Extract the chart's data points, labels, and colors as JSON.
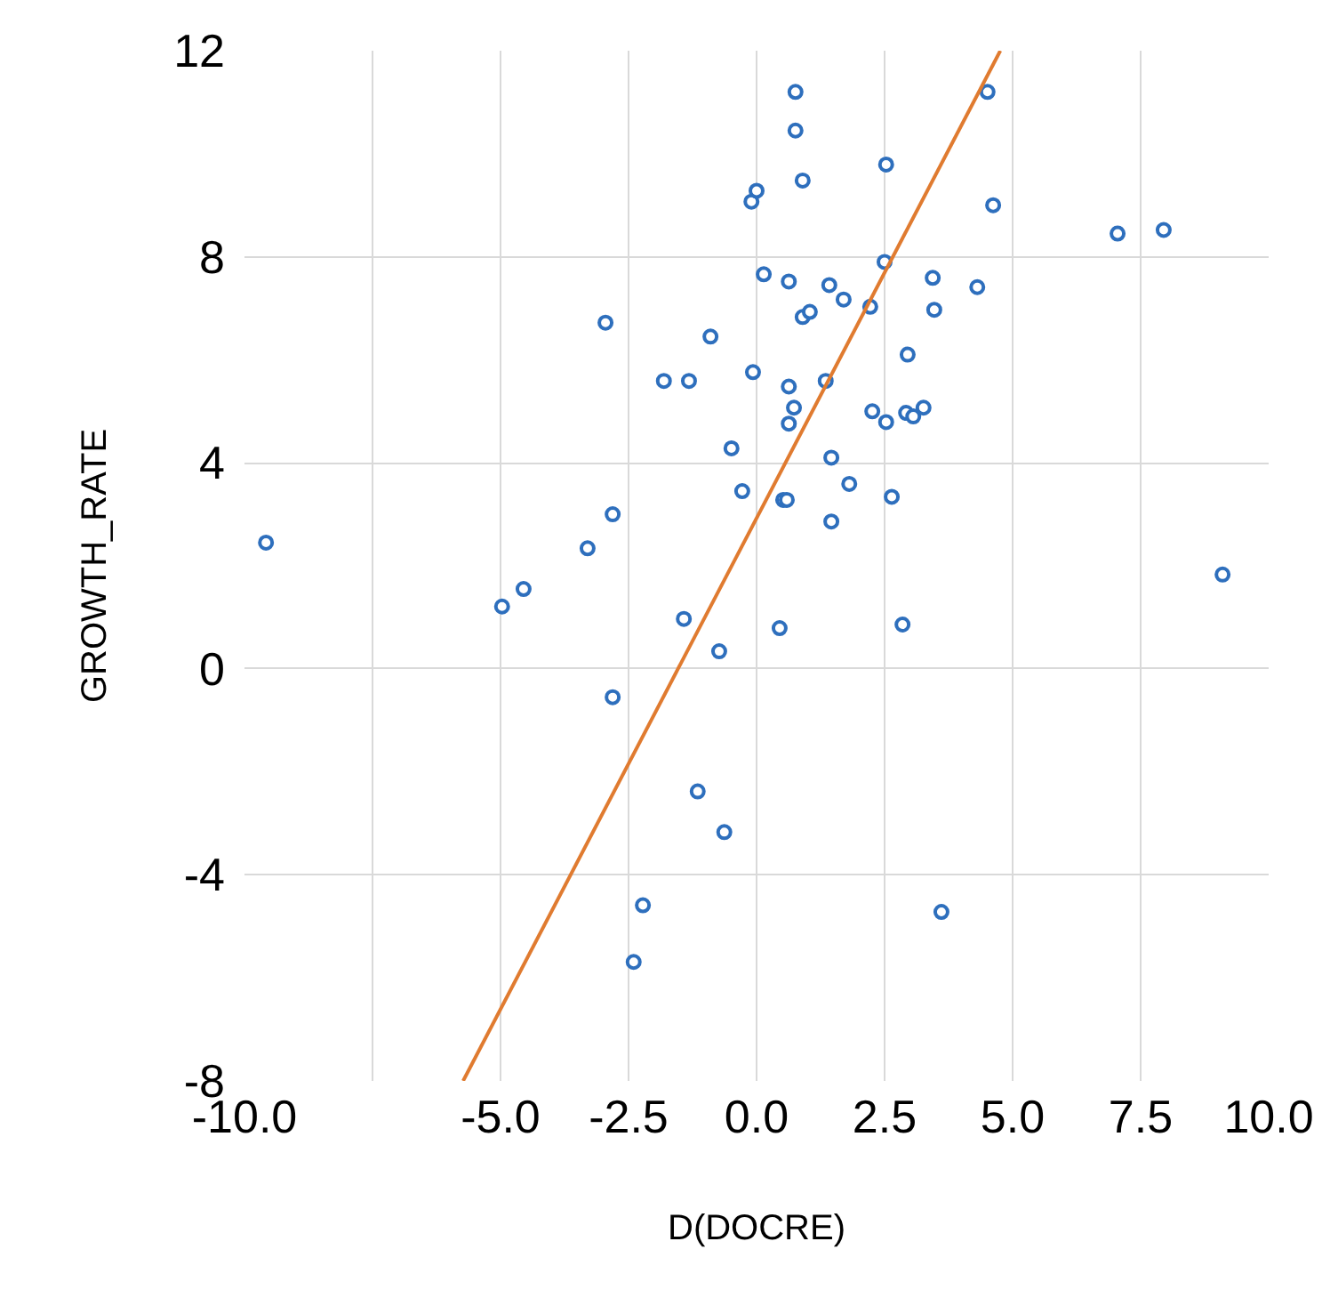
{
  "chart_data": {
    "type": "scatter",
    "xlabel": "D(DOCRE)",
    "ylabel": "GROWTH_RATE",
    "xlim": [
      -10,
      10
    ],
    "ylim": [
      -8,
      12
    ],
    "xticks": [
      {
        "value": -10,
        "label": "-10.0"
      },
      {
        "value": -7.5,
        "label": null
      },
      {
        "value": -5,
        "label": "-5.0"
      },
      {
        "value": -2.5,
        "label": "-2.5"
      },
      {
        "value": 0,
        "label": "0.0"
      },
      {
        "value": 2.5,
        "label": "2.5"
      },
      {
        "value": 5,
        "label": "5.0"
      },
      {
        "value": 7.5,
        "label": "7.5"
      },
      {
        "value": 10,
        "label": "10.0"
      }
    ],
    "yticks": [
      -8,
      -4,
      0,
      4,
      8,
      12
    ],
    "grid": true,
    "series": [
      {
        "marker": "circle",
        "color": "#2e6fbd",
        "x": [
          -9.58,
          -4.97,
          -4.55,
          -3.3,
          -2.81,
          -2.95,
          -1.81,
          -1.32,
          -0.9,
          -1.42,
          -0.73,
          -0.49,
          -0.28,
          -0.1,
          0.0,
          -0.07,
          0.14,
          0.63,
          0.76,
          0.76,
          0.9,
          0.63,
          0.73,
          0.63,
          0.9,
          1.04,
          1.42,
          1.7,
          1.35,
          1.46,
          0.52,
          0.59,
          1.46,
          1.81,
          0.45,
          2.22,
          2.5,
          2.53,
          2.26,
          2.53,
          2.92,
          3.06,
          3.26,
          2.95,
          3.44,
          3.47,
          2.64,
          2.85,
          4.31,
          4.51,
          4.62,
          7.05,
          7.95,
          9.1,
          -2.81,
          -1.15,
          -0.63,
          -2.22,
          -2.4,
          3.61
        ],
        "values": [
          2.45,
          1.21,
          1.55,
          2.34,
          3.0,
          6.72,
          5.59,
          5.59,
          6.45,
          0.97,
          0.34,
          4.28,
          3.45,
          9.07,
          9.28,
          5.76,
          7.66,
          7.52,
          11.2,
          10.45,
          9.48,
          5.48,
          5.07,
          4.76,
          6.83,
          6.93,
          7.45,
          7.17,
          5.59,
          4.1,
          3.28,
          3.28,
          2.86,
          3.59,
          0.79,
          7.03,
          7.9,
          9.79,
          5.0,
          4.79,
          4.97,
          4.9,
          5.07,
          6.1,
          7.59,
          6.97,
          3.34,
          0.86,
          7.41,
          11.2,
          9.0,
          8.45,
          8.52,
          1.83,
          -0.55,
          -2.38,
          -3.17,
          -4.59,
          -5.69,
          -4.72
        ]
      },
      {
        "type": "line",
        "marker": "none",
        "line_style": "solid",
        "color": "#e07b30",
        "x": [
          -5.73,
          4.76
        ],
        "values": [
          -8,
          12
        ]
      }
    ]
  }
}
